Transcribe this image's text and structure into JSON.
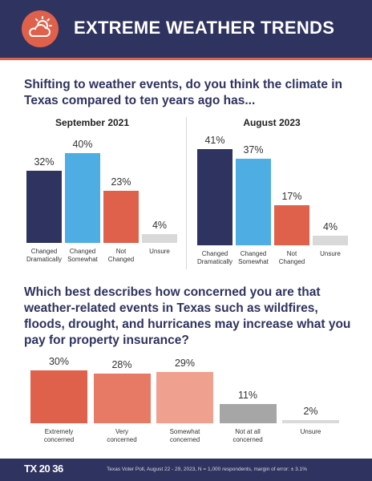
{
  "header": {
    "title": "EXTREME WEATHER TRENDS",
    "icon": "sun-cloud-icon",
    "colors": {
      "background": "#2f335f",
      "accent": "#e0614b"
    }
  },
  "question1": "Shifting to weather events, do you think the climate in Texas compared to ten years ago has...",
  "question2": "Which best describes how concerned you are that weather-related events in Texas such as wildfires, floods, drought, and hurricanes may increase what you pay for property insurance?",
  "chart_data": [
    {
      "type": "bar",
      "title": "September 2021",
      "categories": [
        "Changed\nDramatically",
        "Changed\nSomewhat",
        "Not\nChanged",
        "Unsure"
      ],
      "values": [
        32,
        40,
        23,
        4
      ],
      "labels": [
        "32%",
        "40%",
        "23%",
        "4%"
      ],
      "colors": [
        "#2f335f",
        "#4eaee3",
        "#e0614b",
        "#d9d9d9"
      ],
      "ylim": [
        0,
        41
      ]
    },
    {
      "type": "bar",
      "title": "August 2023",
      "categories": [
        "Changed\nDramatically",
        "Changed\nSomewhat",
        "Not\nChanged",
        "Unsure"
      ],
      "values": [
        41,
        37,
        17,
        4
      ],
      "labels": [
        "41%",
        "37%",
        "17%",
        "4%"
      ],
      "colors": [
        "#2f335f",
        "#4eaee3",
        "#e0614b",
        "#d9d9d9"
      ],
      "ylim": [
        0,
        41
      ]
    },
    {
      "type": "bar",
      "title": "",
      "categories": [
        "Extremely\nconcerned",
        "Very\nconcerned",
        "Somewhat\nconcerned",
        "Not at all\nconcerned",
        "Unsure"
      ],
      "values": [
        30,
        28,
        29,
        11,
        2
      ],
      "labels": [
        "30%",
        "28%",
        "29%",
        "11%",
        "2%"
      ],
      "colors": [
        "#e0614b",
        "#e77a65",
        "#efa08f",
        "#a6a6a6",
        "#d9d9d9"
      ],
      "ylim": [
        0,
        30
      ]
    }
  ],
  "footer": {
    "logo": "TX 20 36",
    "source": "Texas Voter Poll, August 22 - 29, 2023, N = 1,000 respondents, margin of error: ± 3.1%"
  }
}
